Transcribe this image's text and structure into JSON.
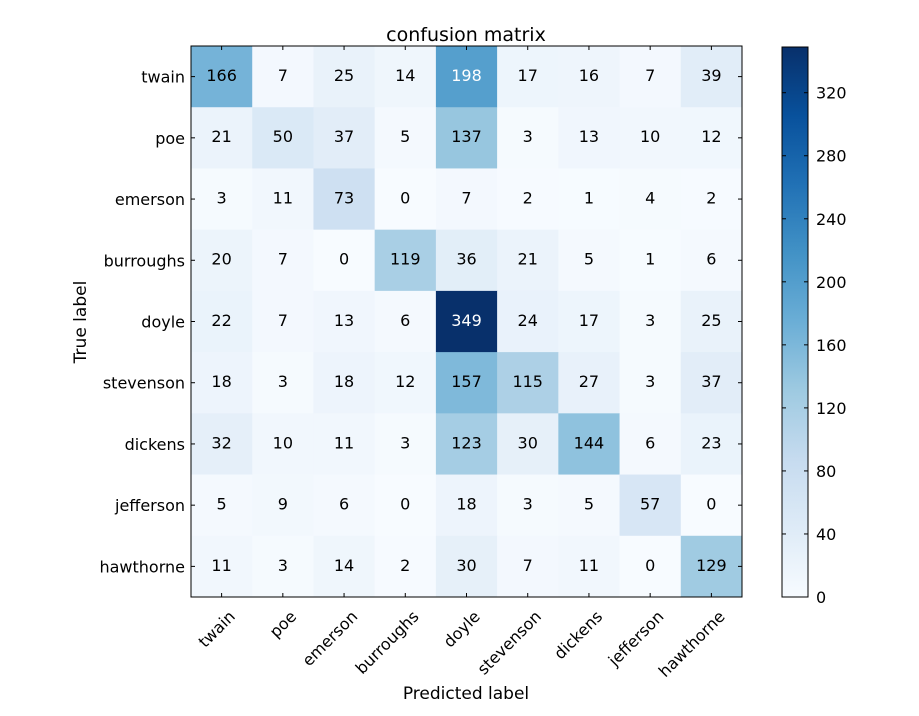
{
  "chart_data": {
    "type": "heatmap",
    "title": "confusion matrix",
    "xlabel": "Predicted label",
    "ylabel": "True label",
    "x_categories": [
      "twain",
      "poe",
      "emerson",
      "burroughs",
      "doyle",
      "stevenson",
      "dickens",
      "jefferson",
      "hawthorne"
    ],
    "y_categories": [
      "twain",
      "poe",
      "emerson",
      "burroughs",
      "doyle",
      "stevenson",
      "dickens",
      "jefferson",
      "hawthorne"
    ],
    "values": [
      [
        166,
        7,
        25,
        14,
        198,
        17,
        16,
        7,
        39
      ],
      [
        21,
        50,
        37,
        5,
        137,
        3,
        13,
        10,
        12
      ],
      [
        3,
        11,
        73,
        0,
        7,
        2,
        1,
        4,
        2
      ],
      [
        20,
        7,
        0,
        119,
        36,
        21,
        5,
        1,
        6
      ],
      [
        22,
        7,
        13,
        6,
        349,
        24,
        17,
        3,
        25
      ],
      [
        18,
        3,
        18,
        12,
        157,
        115,
        27,
        3,
        37
      ],
      [
        32,
        10,
        11,
        3,
        123,
        30,
        144,
        6,
        23
      ],
      [
        5,
        9,
        6,
        0,
        18,
        3,
        5,
        57,
        0
      ],
      [
        11,
        3,
        14,
        2,
        30,
        7,
        11,
        0,
        129
      ]
    ],
    "colorbar": {
      "range": [
        0,
        349
      ],
      "ticks": [
        0,
        40,
        80,
        120,
        160,
        200,
        240,
        280,
        320
      ]
    },
    "colormap": "Blues",
    "text_color_threshold": 174.5,
    "colors": {
      "colormap_stops": [
        "#f7fbff",
        "#deebf7",
        "#c6dbef",
        "#9ecae1",
        "#6baed6",
        "#4292c6",
        "#2171b5",
        "#08519c",
        "#08306b"
      ],
      "text_dark": "#000000",
      "text_light": "#ffffff",
      "frame": "#000000"
    }
  }
}
